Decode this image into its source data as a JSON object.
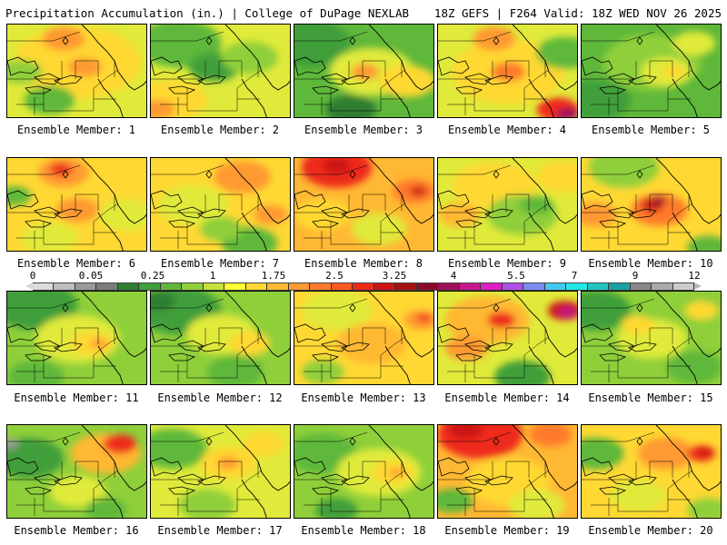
{
  "header": {
    "title": "Precipitation Accumulation (in.) | College of DuPage NEXLAB",
    "run_info": "18Z GEFS | F264 Valid: 18Z WED NOV 26 2025"
  },
  "colorbar": {
    "labels": [
      "0",
      "0.05",
      "0.25",
      "1",
      "1.75",
      "2.5",
      "3.25",
      "4",
      "5.5",
      "7",
      "9",
      "12"
    ],
    "colors": [
      "#dcdcdc",
      "#bdbdbd",
      "#9a9a9a",
      "#7b7b7b",
      "#2e7d32",
      "#3f9f3a",
      "#5fb83a",
      "#8fcf3a",
      "#c7e23a",
      "#ffff33",
      "#ffd833",
      "#ffb833",
      "#ff9933",
      "#ff7a2a",
      "#ff5a22",
      "#ee2a1a",
      "#cc1414",
      "#a81010",
      "#8a0a2a",
      "#a0105a",
      "#c8168c",
      "#e01cc4",
      "#b050e8",
      "#7a8cf0",
      "#44c8f0",
      "#22e8e8",
      "#22c4c0",
      "#1aa0a0",
      "#888888",
      "#aaaaaa",
      "#cccccc"
    ],
    "under_color": "#d8d8d8",
    "over_color": "#b8b8b8"
  },
  "members": [
    {
      "label": "Ensemble Member: 1",
      "base": "#e0ea3a",
      "blobs": [
        [
          "#ffd833",
          0.5,
          0.4,
          0.45
        ],
        [
          "#ff9933",
          0.4,
          0.15,
          0.15
        ],
        [
          "#ff9933",
          0.55,
          0.45,
          0.12
        ],
        [
          "#5fb83a",
          0.3,
          0.8,
          0.18
        ],
        [
          "#8fcf3a",
          0.1,
          0.5,
          0.15
        ]
      ]
    },
    {
      "label": "Ensemble Member: 2",
      "base": "#e0ea3a",
      "blobs": [
        [
          "#5fb83a",
          0.2,
          0.2,
          0.3
        ],
        [
          "#3f9f3a",
          0.45,
          0.45,
          0.18
        ],
        [
          "#ffd833",
          0.15,
          0.8,
          0.25
        ],
        [
          "#ff9933",
          0.05,
          0.9,
          0.12
        ],
        [
          "#8fcf3a",
          0.7,
          0.35,
          0.2
        ]
      ]
    },
    {
      "label": "Ensemble Member: 3",
      "base": "#5fb83a",
      "blobs": [
        [
          "#3f9f3a",
          0.1,
          0.2,
          0.3
        ],
        [
          "#e0ea3a",
          0.55,
          0.5,
          0.3
        ],
        [
          "#ff9933",
          0.5,
          0.5,
          0.1
        ],
        [
          "#ffd833",
          0.8,
          0.6,
          0.2
        ],
        [
          "#2e7d32",
          0.4,
          0.9,
          0.18
        ]
      ]
    },
    {
      "label": "Ensemble Member: 4",
      "base": "#e0ea3a",
      "blobs": [
        [
          "#ffd833",
          0.5,
          0.5,
          0.4
        ],
        [
          "#ff7a2a",
          0.5,
          0.5,
          0.12
        ],
        [
          "#ff9933",
          0.4,
          0.15,
          0.15
        ],
        [
          "#ee2a1a",
          0.85,
          0.9,
          0.15
        ],
        [
          "#a0105a",
          0.92,
          0.95,
          0.08
        ],
        [
          "#5fb83a",
          0.9,
          0.3,
          0.2
        ]
      ]
    },
    {
      "label": "Ensemble Member: 5",
      "base": "#5fb83a",
      "blobs": [
        [
          "#8fcf3a",
          0.5,
          0.4,
          0.35
        ],
        [
          "#e0ea3a",
          0.6,
          0.5,
          0.18
        ],
        [
          "#ffd833",
          0.65,
          0.5,
          0.08
        ],
        [
          "#3f9f3a",
          0.1,
          0.8,
          0.25
        ],
        [
          "#e0ea3a",
          0.8,
          0.2,
          0.15
        ]
      ]
    },
    {
      "label": "Ensemble Member: 6",
      "base": "#ffd833",
      "blobs": [
        [
          "#ff9933",
          0.4,
          0.15,
          0.18
        ],
        [
          "#ee2a1a",
          0.38,
          0.12,
          0.08
        ],
        [
          "#ff9933",
          0.5,
          0.55,
          0.15
        ],
        [
          "#5fb83a",
          0.05,
          0.4,
          0.12
        ],
        [
          "#e0ea3a",
          0.3,
          0.85,
          0.2
        ],
        [
          "#e0ea3a",
          0.85,
          0.6,
          0.2
        ]
      ]
    },
    {
      "label": "Ensemble Member: 7",
      "base": "#ffd833",
      "blobs": [
        [
          "#ff9933",
          0.65,
          0.2,
          0.2
        ],
        [
          "#e0ea3a",
          0.3,
          0.5,
          0.25
        ],
        [
          "#5fb83a",
          0.7,
          0.9,
          0.2
        ],
        [
          "#ff9933",
          0.85,
          0.6,
          0.12
        ],
        [
          "#8fcf3a",
          0.5,
          0.75,
          0.15
        ]
      ]
    },
    {
      "label": "Ensemble Member: 8",
      "base": "#ffb833",
      "blobs": [
        [
          "#ee2a1a",
          0.3,
          0.1,
          0.25
        ],
        [
          "#cc1414",
          0.3,
          0.08,
          0.1
        ],
        [
          "#ff7a2a",
          0.85,
          0.35,
          0.15
        ],
        [
          "#cc1414",
          0.88,
          0.35,
          0.06
        ],
        [
          "#ffd833",
          0.2,
          0.6,
          0.2
        ],
        [
          "#e0ea3a",
          0.6,
          0.75,
          0.2
        ]
      ]
    },
    {
      "label": "Ensemble Member: 9",
      "base": "#e0ea3a",
      "blobs": [
        [
          "#ffd833",
          0.4,
          0.3,
          0.3
        ],
        [
          "#8fcf3a",
          0.6,
          0.6,
          0.25
        ],
        [
          "#ffb833",
          0.15,
          0.6,
          0.15
        ],
        [
          "#5fb83a",
          0.7,
          0.5,
          0.12
        ],
        [
          "#ffd833",
          0.9,
          0.2,
          0.2
        ]
      ]
    },
    {
      "label": "Ensemble Member: 10",
      "base": "#ffd833",
      "blobs": [
        [
          "#8fcf3a",
          0.3,
          0.1,
          0.25
        ],
        [
          "#ff7a2a",
          0.55,
          0.55,
          0.2
        ],
        [
          "#cc1414",
          0.5,
          0.5,
          0.08
        ],
        [
          "#8a0a2a",
          0.55,
          0.45,
          0.05
        ],
        [
          "#ff9933",
          0.1,
          0.6,
          0.15
        ],
        [
          "#5fb83a",
          0.9,
          0.95,
          0.15
        ]
      ]
    },
    {
      "label": "Ensemble Member: 11",
      "base": "#8fcf3a",
      "blobs": [
        [
          "#3f9f3a",
          0.2,
          0.15,
          0.3
        ],
        [
          "#e0ea3a",
          0.5,
          0.5,
          0.3
        ],
        [
          "#ffd833",
          0.6,
          0.55,
          0.15
        ],
        [
          "#ff9933",
          0.65,
          0.55,
          0.06
        ],
        [
          "#5fb83a",
          0.2,
          0.9,
          0.2
        ]
      ]
    },
    {
      "label": "Ensemble Member: 12",
      "base": "#8fcf3a",
      "blobs": [
        [
          "#3f9f3a",
          0.2,
          0.2,
          0.3
        ],
        [
          "#2e7d32",
          0.05,
          0.1,
          0.12
        ],
        [
          "#e0ea3a",
          0.5,
          0.45,
          0.25
        ],
        [
          "#ffd833",
          0.7,
          0.55,
          0.15
        ],
        [
          "#5fb83a",
          0.6,
          0.85,
          0.2
        ]
      ]
    },
    {
      "label": "Ensemble Member: 13",
      "base": "#ffd833",
      "blobs": [
        [
          "#e0ea3a",
          0.3,
          0.2,
          0.25
        ],
        [
          "#ffb833",
          0.55,
          0.55,
          0.25
        ],
        [
          "#ff9933",
          0.9,
          0.3,
          0.12
        ],
        [
          "#ee2a1a",
          0.92,
          0.28,
          0.05
        ],
        [
          "#8fcf3a",
          0.2,
          0.85,
          0.15
        ]
      ]
    },
    {
      "label": "Ensemble Member: 14",
      "base": "#e0ea3a",
      "blobs": [
        [
          "#ffb833",
          0.35,
          0.3,
          0.3
        ],
        [
          "#ee2a1a",
          0.45,
          0.3,
          0.1
        ],
        [
          "#ff9933",
          0.2,
          0.6,
          0.15
        ],
        [
          "#cc1414",
          0.9,
          0.2,
          0.12
        ],
        [
          "#c8168c",
          0.92,
          0.22,
          0.06
        ],
        [
          "#3f9f3a",
          0.6,
          0.9,
          0.2
        ]
      ]
    },
    {
      "label": "Ensemble Member: 15",
      "base": "#8fcf3a",
      "blobs": [
        [
          "#3f9f3a",
          0.1,
          0.2,
          0.25
        ],
        [
          "#e0ea3a",
          0.5,
          0.5,
          0.25
        ],
        [
          "#ffd833",
          0.4,
          0.35,
          0.12
        ],
        [
          "#5fb83a",
          0.8,
          0.8,
          0.2
        ],
        [
          "#ffd833",
          0.85,
          0.2,
          0.12
        ]
      ]
    },
    {
      "label": "Ensemble Member: 16",
      "base": "#8fcf3a",
      "blobs": [
        [
          "#3f9f3a",
          0.15,
          0.35,
          0.25
        ],
        [
          "#9a9a9a",
          0.02,
          0.2,
          0.06
        ],
        [
          "#ffb833",
          0.7,
          0.3,
          0.25
        ],
        [
          "#ee2a1a",
          0.8,
          0.2,
          0.12
        ],
        [
          "#e0ea3a",
          0.5,
          0.7,
          0.2
        ],
        [
          "#5fb83a",
          0.7,
          0.9,
          0.15
        ]
      ]
    },
    {
      "label": "Ensemble Member: 17",
      "base": "#e0ea3a",
      "blobs": [
        [
          "#5fb83a",
          0.15,
          0.25,
          0.25
        ],
        [
          "#ffd833",
          0.55,
          0.4,
          0.2
        ],
        [
          "#ff9933",
          0.55,
          0.4,
          0.08
        ],
        [
          "#ffd833",
          0.8,
          0.2,
          0.15
        ],
        [
          "#8fcf3a",
          0.4,
          0.85,
          0.2
        ]
      ]
    },
    {
      "label": "Ensemble Member: 18",
      "base": "#8fcf3a",
      "blobs": [
        [
          "#5fb83a",
          0.2,
          0.3,
          0.25
        ],
        [
          "#e0ea3a",
          0.6,
          0.5,
          0.3
        ],
        [
          "#ffd833",
          0.7,
          0.5,
          0.15
        ],
        [
          "#ff9933",
          0.72,
          0.5,
          0.05
        ],
        [
          "#3f9f3a",
          0.3,
          0.9,
          0.15
        ]
      ]
    },
    {
      "label": "Ensemble Member: 19",
      "base": "#ffb833",
      "blobs": [
        [
          "#ee2a1a",
          0.3,
          0.1,
          0.3
        ],
        [
          "#cc1414",
          0.2,
          0.05,
          0.12
        ],
        [
          "#ff7a2a",
          0.8,
          0.1,
          0.15
        ],
        [
          "#ffd833",
          0.5,
          0.6,
          0.3
        ],
        [
          "#e0ea3a",
          0.7,
          0.85,
          0.2
        ],
        [
          "#5fb83a",
          0.1,
          0.8,
          0.15
        ]
      ]
    },
    {
      "label": "Ensemble Member: 20",
      "base": "#ffd833",
      "blobs": [
        [
          "#5fb83a",
          0.1,
          0.3,
          0.2
        ],
        [
          "#ff9933",
          0.6,
          0.3,
          0.2
        ],
        [
          "#ee2a1a",
          0.85,
          0.3,
          0.1
        ],
        [
          "#cc1414",
          0.88,
          0.28,
          0.05
        ],
        [
          "#e0ea3a",
          0.4,
          0.75,
          0.2
        ],
        [
          "#8fcf3a",
          0.9,
          0.9,
          0.15
        ]
      ]
    }
  ]
}
